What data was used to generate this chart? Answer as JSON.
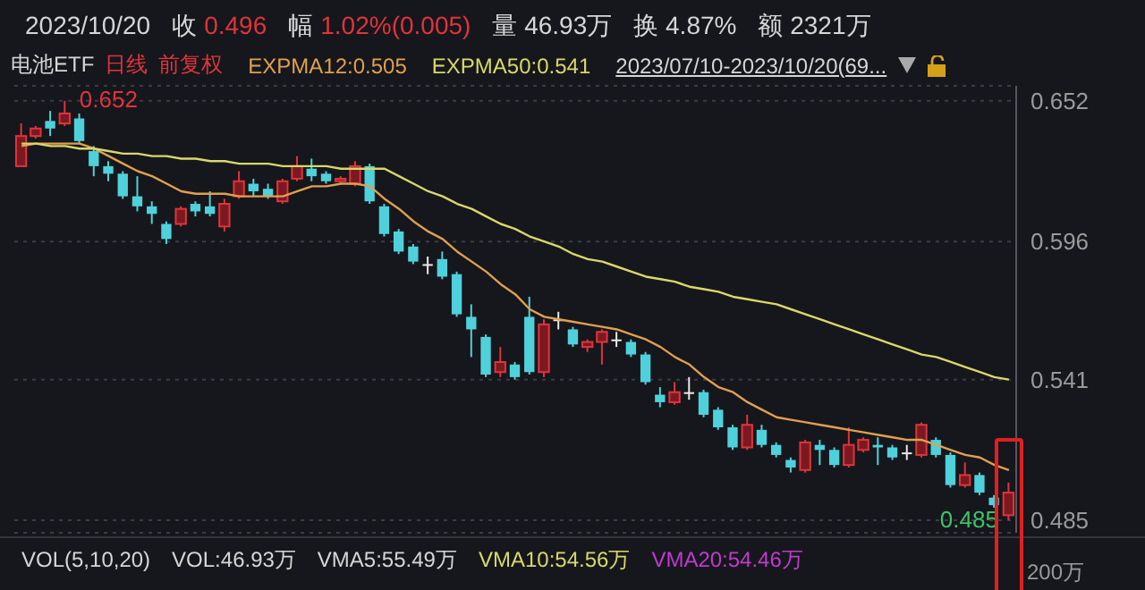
{
  "chart_data": {
    "type": "candlestick",
    "title": "电池ETF",
    "categories": [
      null,
      null,
      null,
      null,
      null,
      null,
      null,
      null,
      null,
      null,
      null,
      null,
      null,
      null,
      null,
      null,
      null,
      null,
      null,
      null,
      null,
      null,
      null,
      null,
      null,
      null,
      null,
      null,
      null,
      null,
      null,
      null,
      null,
      null,
      null,
      null,
      null,
      null,
      null,
      null,
      null,
      null,
      null,
      null,
      null,
      null,
      null,
      null,
      null,
      null,
      null,
      null,
      null,
      null,
      null,
      null,
      null,
      null,
      null,
      null,
      null,
      null,
      null,
      null,
      null,
      null,
      null,
      null,
      null
    ],
    "ohlc": [
      [
        0.626,
        0.643,
        0.626,
        0.638
      ],
      [
        0.638,
        0.642,
        0.637,
        0.641
      ],
      [
        0.644,
        0.648,
        0.638,
        0.641
      ],
      [
        0.643,
        0.652,
        0.642,
        0.647
      ],
      [
        0.645,
        0.647,
        0.635,
        0.636
      ],
      [
        0.632,
        0.634,
        0.622,
        0.626
      ],
      [
        0.626,
        0.628,
        0.62,
        0.623
      ],
      [
        0.623,
        0.624,
        0.613,
        0.614
      ],
      [
        0.614,
        0.622,
        0.608,
        0.61
      ],
      [
        0.61,
        0.612,
        0.603,
        0.607
      ],
      [
        0.603,
        0.604,
        0.595,
        0.597
      ],
      [
        0.603,
        0.61,
        0.602,
        0.609
      ],
      [
        0.611,
        0.612,
        0.606,
        0.608
      ],
      [
        0.61,
        0.616,
        0.606,
        0.607
      ],
      [
        0.602,
        0.613,
        0.6,
        0.611
      ],
      [
        0.614,
        0.624,
        0.613,
        0.62
      ],
      [
        0.619,
        0.621,
        0.614,
        0.616
      ],
      [
        0.617,
        0.619,
        0.613,
        0.614
      ],
      [
        0.612,
        0.621,
        0.611,
        0.62
      ],
      [
        0.621,
        0.63,
        0.62,
        0.626
      ],
      [
        0.625,
        0.629,
        0.62,
        0.622
      ],
      [
        0.623,
        0.624,
        0.619,
        0.62
      ],
      [
        0.62,
        0.622,
        0.619,
        0.621
      ],
      [
        0.619,
        0.628,
        0.618,
        0.626
      ],
      [
        0.626,
        0.627,
        0.611,
        0.612
      ],
      [
        0.61,
        0.611,
        0.598,
        0.599
      ],
      [
        0.6,
        0.601,
        0.591,
        0.592
      ],
      [
        0.594,
        0.595,
        0.587,
        0.588
      ],
      [
        0.587,
        0.59,
        0.583,
        0.587
      ],
      [
        0.589,
        0.592,
        0.581,
        0.582
      ],
      [
        0.583,
        0.584,
        0.566,
        0.567
      ],
      [
        0.566,
        0.571,
        0.55,
        0.561
      ],
      [
        0.558,
        0.559,
        0.542,
        0.543
      ],
      [
        0.544,
        0.554,
        0.542,
        0.548
      ],
      [
        0.547,
        0.548,
        0.541,
        0.542
      ],
      [
        0.566,
        0.574,
        0.543,
        0.544
      ],
      [
        0.544,
        0.565,
        0.542,
        0.563
      ],
      [
        0.565,
        0.568,
        0.561,
        0.565
      ],
      [
        0.561,
        0.562,
        0.554,
        0.555
      ],
      [
        0.554,
        0.557,
        0.552,
        0.556
      ],
      [
        0.556,
        0.561,
        0.547,
        0.56
      ],
      [
        0.557,
        0.56,
        0.554,
        0.557
      ],
      [
        0.556,
        0.557,
        0.55,
        0.551
      ],
      [
        0.551,
        0.552,
        0.539,
        0.54
      ],
      [
        0.535,
        0.538,
        0.53,
        0.532
      ],
      [
        0.532,
        0.54,
        0.531,
        0.536
      ],
      [
        0.536,
        0.542,
        0.533,
        0.536
      ],
      [
        0.536,
        0.537,
        0.526,
        0.527
      ],
      [
        0.529,
        0.53,
        0.521,
        0.522
      ],
      [
        0.522,
        0.523,
        0.513,
        0.514
      ],
      [
        0.514,
        0.527,
        0.513,
        0.523
      ],
      [
        0.521,
        0.523,
        0.514,
        0.515
      ],
      [
        0.515,
        0.516,
        0.51,
        0.511
      ],
      [
        0.509,
        0.51,
        0.504,
        0.506
      ],
      [
        0.505,
        0.517,
        0.504,
        0.516
      ],
      [
        0.515,
        0.517,
        0.507,
        0.513
      ],
      [
        0.513,
        0.514,
        0.506,
        0.507
      ],
      [
        0.507,
        0.522,
        0.506,
        0.515
      ],
      [
        0.513,
        0.518,
        0.512,
        0.517
      ],
      [
        0.515,
        0.518,
        0.507,
        0.514
      ],
      [
        0.514,
        0.515,
        0.509,
        0.51
      ],
      [
        0.512,
        0.515,
        0.509,
        0.512
      ],
      [
        0.511,
        0.524,
        0.51,
        0.523
      ],
      [
        0.517,
        0.518,
        0.51,
        0.511
      ],
      [
        0.511,
        0.512,
        0.498,
        0.499
      ],
      [
        0.499,
        0.508,
        0.498,
        0.503
      ],
      [
        0.503,
        0.504,
        0.495,
        0.496
      ],
      [
        0.494,
        0.495,
        0.49,
        0.491
      ],
      [
        0.487,
        0.5,
        0.485,
        0.496
      ]
    ],
    "series": [
      {
        "name": "EXPMA12:0.505",
        "type": "line",
        "color": "#e0a050",
        "values": [
          0.634,
          0.635,
          0.635,
          0.635,
          0.635,
          0.633,
          0.63,
          0.627,
          0.624,
          0.622,
          0.619,
          0.616,
          0.615,
          0.615,
          0.615,
          0.614,
          0.614,
          0.614,
          0.614,
          0.616,
          0.618,
          0.618,
          0.619,
          0.619,
          0.618,
          0.613,
          0.609,
          0.604,
          0.6,
          0.597,
          0.592,
          0.588,
          0.584,
          0.579,
          0.575,
          0.569,
          0.566,
          0.565,
          0.564,
          0.563,
          0.562,
          0.561,
          0.559,
          0.557,
          0.554,
          0.55,
          0.547,
          0.542,
          0.538,
          0.536,
          0.532,
          0.529,
          0.526,
          0.525,
          0.524,
          0.523,
          0.522,
          0.521,
          0.52,
          0.519,
          0.518,
          0.517,
          0.517,
          0.515,
          0.513,
          0.511,
          0.51,
          0.507,
          0.505
        ]
      },
      {
        "name": "EXPMA50:0.541",
        "type": "line",
        "color": "#d8d86a",
        "values": [
          0.635,
          0.635,
          0.634,
          0.634,
          0.633,
          0.633,
          0.632,
          0.631,
          0.631,
          0.63,
          0.63,
          0.629,
          0.629,
          0.628,
          0.628,
          0.627,
          0.627,
          0.627,
          0.626,
          0.626,
          0.626,
          0.626,
          0.625,
          0.625,
          0.625,
          0.625,
          0.622,
          0.619,
          0.616,
          0.614,
          0.611,
          0.609,
          0.606,
          0.603,
          0.601,
          0.598,
          0.596,
          0.594,
          0.591,
          0.589,
          0.588,
          0.586,
          0.584,
          0.582,
          0.581,
          0.58,
          0.578,
          0.577,
          0.576,
          0.574,
          0.573,
          0.572,
          0.571,
          0.569,
          0.567,
          0.565,
          0.563,
          0.561,
          0.559,
          0.557,
          0.555,
          0.553,
          0.551,
          0.55,
          0.548,
          0.546,
          0.544,
          0.542,
          0.541
        ]
      }
    ],
    "ylim": [
      0.48,
      0.658
    ],
    "yticks": [
      0.652,
      0.596,
      0.541,
      0.485
    ],
    "grid": "y",
    "legend": "top left",
    "annotations": [
      "2023/10/20",
      "收",
      "0.496",
      "幅",
      "1.02%(0.005)",
      "量 46.93万",
      "换 4.87%",
      "额 2321万",
      "日线",
      "前复权",
      "2023/07/10-2023/10/20(69...",
      "VOL(5,10,20)",
      "VOL:46.93万",
      "VMA5:55.49万",
      "VMA10:54.56万",
      "VMA20:54.46万",
      "200万",
      "0.652",
      "0.485"
    ]
  }
}
